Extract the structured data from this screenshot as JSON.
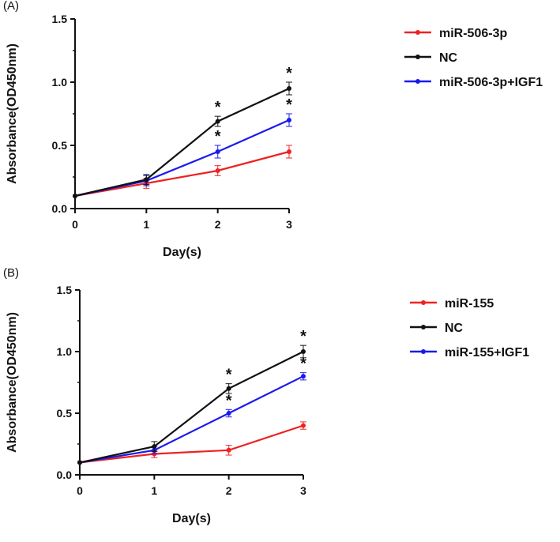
{
  "chart_data": [
    {
      "type": "line",
      "panel_label": "(A)",
      "xlabel": "Day(s)",
      "ylabel": "Absorbance(OD450nm)",
      "x": [
        0,
        1,
        2,
        3
      ],
      "xticks": [
        "0",
        "1",
        "2",
        "3"
      ],
      "ylim": [
        0,
        1.5
      ],
      "yticks": [
        "0.0",
        "0.5",
        "1.0",
        "1.5"
      ],
      "legend_position": "right",
      "series": [
        {
          "name": "miR-506-3p",
          "color": "#ee2222",
          "values": [
            0.1,
            0.2,
            0.3,
            0.45
          ],
          "errors": [
            0.0,
            0.04,
            0.04,
            0.05
          ],
          "significance": [
            "",
            "",
            "",
            ""
          ]
        },
        {
          "name": "NC",
          "color": "#111111",
          "values": [
            0.1,
            0.23,
            0.69,
            0.95
          ],
          "errors": [
            0.0,
            0.04,
            0.04,
            0.05
          ],
          "significance": [
            "",
            "",
            "*",
            "*"
          ]
        },
        {
          "name": "miR-506-3p+IGF1",
          "color": "#1a1aee",
          "values": [
            0.1,
            0.22,
            0.45,
            0.7
          ],
          "errors": [
            0.0,
            0.04,
            0.05,
            0.05
          ],
          "significance": [
            "",
            "",
            "*",
            "*"
          ]
        }
      ]
    },
    {
      "type": "line",
      "panel_label": "(B)",
      "xlabel": "Day(s)",
      "ylabel": "Absorbance(OD450nm)",
      "x": [
        0,
        1,
        2,
        3
      ],
      "xticks": [
        "0",
        "1",
        "2",
        "3"
      ],
      "ylim": [
        0,
        1.5
      ],
      "yticks": [
        "0.0",
        "0.5",
        "1.0",
        "1.5"
      ],
      "legend_position": "right",
      "series": [
        {
          "name": "miR-155",
          "color": "#ee2222",
          "values": [
            0.1,
            0.17,
            0.2,
            0.4
          ],
          "errors": [
            0.0,
            0.03,
            0.04,
            0.03
          ],
          "significance": [
            "",
            "",
            "",
            ""
          ]
        },
        {
          "name": "NC",
          "color": "#111111",
          "values": [
            0.1,
            0.23,
            0.7,
            1.0
          ],
          "errors": [
            0.0,
            0.04,
            0.04,
            0.05
          ],
          "significance": [
            "",
            "",
            "*",
            "*"
          ]
        },
        {
          "name": "miR-155+IGF1",
          "color": "#1a1aee",
          "values": [
            0.1,
            0.2,
            0.5,
            0.8
          ],
          "errors": [
            0.0,
            0.03,
            0.03,
            0.03
          ],
          "significance": [
            "",
            "",
            "*",
            "*"
          ]
        }
      ]
    }
  ]
}
